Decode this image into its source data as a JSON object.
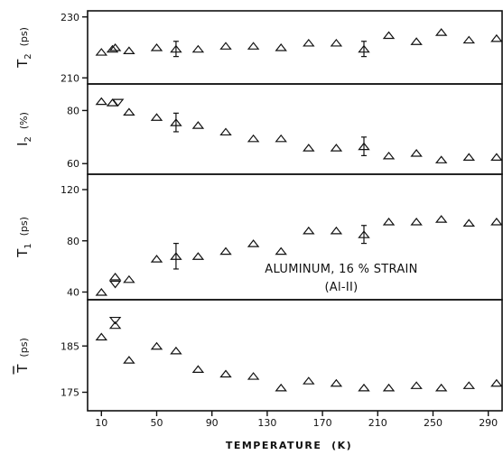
{
  "chart_data": {
    "type": "scatter",
    "xlabel": "TEMPERATURE  (K)",
    "xlim": [
      0,
      300
    ],
    "xticks": [
      10,
      50,
      90,
      130,
      170,
      210,
      250,
      290
    ],
    "marker": "open-triangle",
    "annotation": [
      "ALUMINUM, 16 % STRAIN",
      "(Al-II)"
    ],
    "panels": [
      {
        "id": "tau2",
        "ylabel_main": "T",
        "ylabel_sub": "2",
        "ylabel_unit": "(ps)",
        "ylim": [
          208,
          232
        ],
        "yticks": [
          210,
          230
        ],
        "points": [
          {
            "x": 10,
            "y": 218.5
          },
          {
            "x": 18,
            "y": 219.5
          },
          {
            "x": 20,
            "y": 220.0
          },
          {
            "x": 30,
            "y": 219.0
          },
          {
            "x": 50,
            "y": 220.0
          },
          {
            "x": 64,
            "y": 219.5,
            "err": 2.5
          },
          {
            "x": 80,
            "y": 219.5
          },
          {
            "x": 100,
            "y": 220.5
          },
          {
            "x": 120,
            "y": 220.5
          },
          {
            "x": 140,
            "y": 220.0
          },
          {
            "x": 160,
            "y": 221.5
          },
          {
            "x": 180,
            "y": 221.5
          },
          {
            "x": 200,
            "y": 219.5,
            "err": 2.5
          },
          {
            "x": 218,
            "y": 224.0
          },
          {
            "x": 238,
            "y": 222.0
          },
          {
            "x": 256,
            "y": 225.0
          },
          {
            "x": 276,
            "y": 222.5
          },
          {
            "x": 296,
            "y": 223.0
          }
        ]
      },
      {
        "id": "I2",
        "ylabel_main": "I",
        "ylabel_sub": "2",
        "ylabel_unit": "(%)",
        "ylim": [
          56,
          90
        ],
        "yticks": [
          60,
          80
        ],
        "points": [
          {
            "x": 10,
            "y": 83.5
          },
          {
            "x": 18,
            "y": 83.0
          },
          {
            "x": 22,
            "y": 83.0,
            "inverted": true
          },
          {
            "x": 30,
            "y": 79.5
          },
          {
            "x": 50,
            "y": 77.5
          },
          {
            "x": 64,
            "y": 75.5,
            "err": 3.5
          },
          {
            "x": 80,
            "y": 74.5
          },
          {
            "x": 100,
            "y": 72.0
          },
          {
            "x": 120,
            "y": 69.5
          },
          {
            "x": 140,
            "y": 69.5
          },
          {
            "x": 160,
            "y": 66.0
          },
          {
            "x": 180,
            "y": 66.0
          },
          {
            "x": 200,
            "y": 66.5,
            "err": 3.5
          },
          {
            "x": 218,
            "y": 63.0
          },
          {
            "x": 238,
            "y": 64.0
          },
          {
            "x": 256,
            "y": 61.5
          },
          {
            "x": 276,
            "y": 62.5
          },
          {
            "x": 296,
            "y": 62.5
          }
        ]
      },
      {
        "id": "tau1",
        "ylabel_main": "T",
        "ylabel_sub": "1",
        "ylabel_unit": "(ps)",
        "ylim": [
          34,
          132
        ],
        "yticks": [
          40,
          80,
          120
        ],
        "points": [
          {
            "x": 10,
            "y": 40
          },
          {
            "x": 20,
            "y": 52
          },
          {
            "x": 20,
            "y": 46,
            "inverted": true
          },
          {
            "x": 30,
            "y": 50
          },
          {
            "x": 50,
            "y": 66
          },
          {
            "x": 64,
            "y": 68,
            "err": 10
          },
          {
            "x": 80,
            "y": 68
          },
          {
            "x": 100,
            "y": 72
          },
          {
            "x": 120,
            "y": 78
          },
          {
            "x": 140,
            "y": 72
          },
          {
            "x": 160,
            "y": 88
          },
          {
            "x": 180,
            "y": 88
          },
          {
            "x": 200,
            "y": 85,
            "err": 7
          },
          {
            "x": 218,
            "y": 95
          },
          {
            "x": 238,
            "y": 95
          },
          {
            "x": 256,
            "y": 97
          },
          {
            "x": 276,
            "y": 94
          },
          {
            "x": 296,
            "y": 95
          }
        ]
      },
      {
        "id": "taubar",
        "ylabel_main": "T",
        "ylabel_sub": "",
        "ylabel_unit": "(ps)",
        "ylim": [
          171,
          195
        ],
        "yticks": [
          175,
          185
        ],
        "overbar": true,
        "points": [
          {
            "x": 10,
            "y": 187
          },
          {
            "x": 20,
            "y": 189.5
          },
          {
            "x": 20,
            "y": 190.5,
            "inverted": true
          },
          {
            "x": 30,
            "y": 182
          },
          {
            "x": 50,
            "y": 185
          },
          {
            "x": 64,
            "y": 184
          },
          {
            "x": 80,
            "y": 180
          },
          {
            "x": 100,
            "y": 179
          },
          {
            "x": 120,
            "y": 178.5
          },
          {
            "x": 140,
            "y": 176
          },
          {
            "x": 160,
            "y": 177.5
          },
          {
            "x": 180,
            "y": 177
          },
          {
            "x": 200,
            "y": 176
          },
          {
            "x": 218,
            "y": 176
          },
          {
            "x": 238,
            "y": 176.5
          },
          {
            "x": 256,
            "y": 176
          },
          {
            "x": 276,
            "y": 176.5
          },
          {
            "x": 296,
            "y": 177
          }
        ]
      }
    ]
  }
}
